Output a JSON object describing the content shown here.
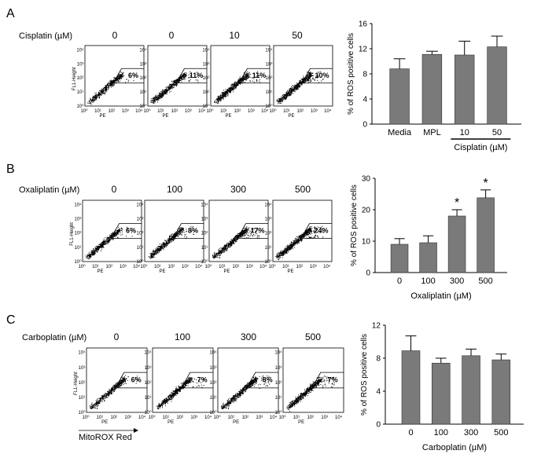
{
  "panels": [
    {
      "letter": "A",
      "treatment_label": "Cisplatin (µM)",
      "dose_labels": [
        "0",
        "0",
        "10",
        "50"
      ],
      "flow_percentages": [
        "6%",
        "11%",
        "11%",
        "10%"
      ],
      "flow_axes": {
        "y_label": "FL1-Height",
        "x_label": "PE",
        "ticks": [
          "10⁰",
          "10¹",
          "10²",
          "10³",
          "10⁴"
        ]
      },
      "chart_data": {
        "type": "bar",
        "categories": [
          "Media",
          "MPL",
          "10",
          "50"
        ],
        "values": [
          8.8,
          11.1,
          11.0,
          12.3
        ],
        "errors": [
          1.6,
          0.5,
          2.2,
          1.7
        ],
        "ylim": [
          0,
          16
        ],
        "yticks": [
          0,
          4,
          8,
          12,
          16
        ],
        "ylabel": "% of  ROS positive cells",
        "xlabel": "Cisplatin (µM)",
        "xlabel_bracket_over": [
          "10",
          "50"
        ],
        "significant": [
          false,
          false,
          false,
          false
        ],
        "bar_color": "#7a7a7a"
      }
    },
    {
      "letter": "B",
      "treatment_label": "Oxaliplatin (µM)",
      "dose_labels": [
        "0",
        "100",
        "300",
        "500"
      ],
      "flow_percentages": [
        "6%",
        "8%",
        "17%",
        "24%"
      ],
      "flow_axes": {
        "y_label": "FL1-Height",
        "x_label": "PE",
        "ticks": [
          "10⁰",
          "10¹",
          "10²",
          "10³",
          "10⁴"
        ]
      },
      "chart_data": {
        "type": "bar",
        "categories": [
          "0",
          "100",
          "300",
          "500"
        ],
        "values": [
          9.0,
          9.5,
          18.0,
          23.8
        ],
        "errors": [
          1.8,
          2.2,
          2.0,
          2.5
        ],
        "ylim": [
          0,
          30
        ],
        "yticks": [
          0,
          10,
          20,
          30
        ],
        "ylabel": "% of  ROS positive cells",
        "xlabel": "Oxaliplatin (µM)",
        "significant": [
          false,
          false,
          true,
          true
        ],
        "significance_marker": "*",
        "bar_color": "#7a7a7a"
      }
    },
    {
      "letter": "C",
      "treatment_label": "Carboplatin (µM)",
      "dose_labels": [
        "0",
        "100",
        "300",
        "500"
      ],
      "flow_percentages": [
        "6%",
        "7%",
        "8%",
        "7%"
      ],
      "flow_axes": {
        "y_label": "FL1-Height",
        "x_label": "PE",
        "ticks": [
          "10⁰",
          "10¹",
          "10²",
          "10³",
          "10⁴"
        ]
      },
      "x_arrow_label": "MitoROX Red",
      "chart_data": {
        "type": "bar",
        "categories": [
          "0",
          "100",
          "300",
          "500"
        ],
        "values": [
          8.9,
          7.4,
          8.3,
          7.8
        ],
        "errors": [
          1.8,
          0.6,
          0.8,
          0.7
        ],
        "ylim": [
          0,
          12
        ],
        "yticks": [
          0,
          4,
          8,
          12
        ],
        "ylabel": "% of  ROS positive cells",
        "xlabel": "Carboplatin (µM)",
        "significant": [
          false,
          false,
          false,
          false
        ],
        "bar_color": "#7a7a7a"
      }
    }
  ]
}
